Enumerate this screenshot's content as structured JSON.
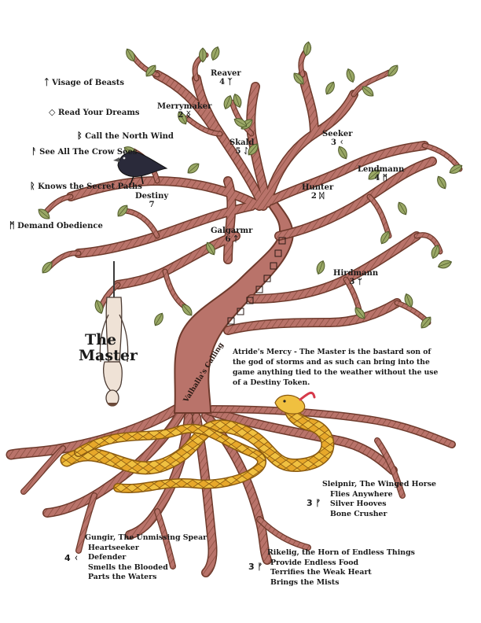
{
  "left_list": [
    {
      "rune": "ᛏ",
      "text": "Visage of Beasts"
    },
    {
      "rune": "◇",
      "text": "Read Your Dreams"
    },
    {
      "rune": "ᛒ",
      "text": "Call the North Wind"
    },
    {
      "rune": "ᚨ",
      "text": "See All The Crow Sees"
    },
    {
      "rune": "ᚱ",
      "text": "Knows the Secret Paths"
    },
    {
      "rune": "ᛗ",
      "text": "Demand Obedience"
    }
  ],
  "branches": [
    {
      "name": "Reaver",
      "rank": "4",
      "rune": "ᛉ"
    },
    {
      "name": "Merrymaker",
      "rank": "2",
      "rune": "ᛝ"
    },
    {
      "name": "Skald",
      "rank": "5",
      "rune": "ᛇ"
    },
    {
      "name": "Seeker",
      "rank": "3",
      "rune": "ᚲ"
    },
    {
      "name": "Lendmann",
      "rank": "4",
      "rune": "ᛗ"
    },
    {
      "name": "Hunter",
      "rank": "2",
      "rune": "ᛞ"
    },
    {
      "name": "Destiny",
      "rank": "7",
      "rune": ""
    },
    {
      "name": "Galgarmr",
      "rank": "6",
      "rune": "ᛏ"
    },
    {
      "name": "Hirdmann",
      "rank": "3",
      "rune": "ᛘ"
    }
  ],
  "master_title": [
    "The",
    "Master"
  ],
  "trunk_text": "Valhalla's Calling",
  "description": "Atride's Mercy - The Master is the bastard son of the god of storms and as such can bring into the game anything tied to the weather without the use of a Destiny Token.",
  "artifacts": [
    {
      "rank": "3",
      "rune": "ᚠ",
      "lines": [
        "Sleipnir, The Winged Horse",
        "Flies Anywhere",
        "Silver Hooves",
        "Bone Crusher"
      ]
    },
    {
      "rank": "4",
      "rune": "ᚲ",
      "lines": [
        "Gungir, The Unmissing Spear",
        "Heartseeker",
        "Defender",
        "Smells the Blooded",
        "Parts the Waters"
      ]
    },
    {
      "rank": "3",
      "rune": "ᚠ",
      "lines": [
        "Rikelig, the Horn of Endless Things",
        "Provide Endless Food",
        "Terrifies the Weak Heart",
        "Brings the Mists"
      ]
    }
  ],
  "colors": {
    "bark": "#b9736a",
    "bark_dark": "#6e3a2c",
    "leaf": "#9aa866",
    "serpent": "#e8b93a",
    "crow": "#2a2a3a"
  }
}
